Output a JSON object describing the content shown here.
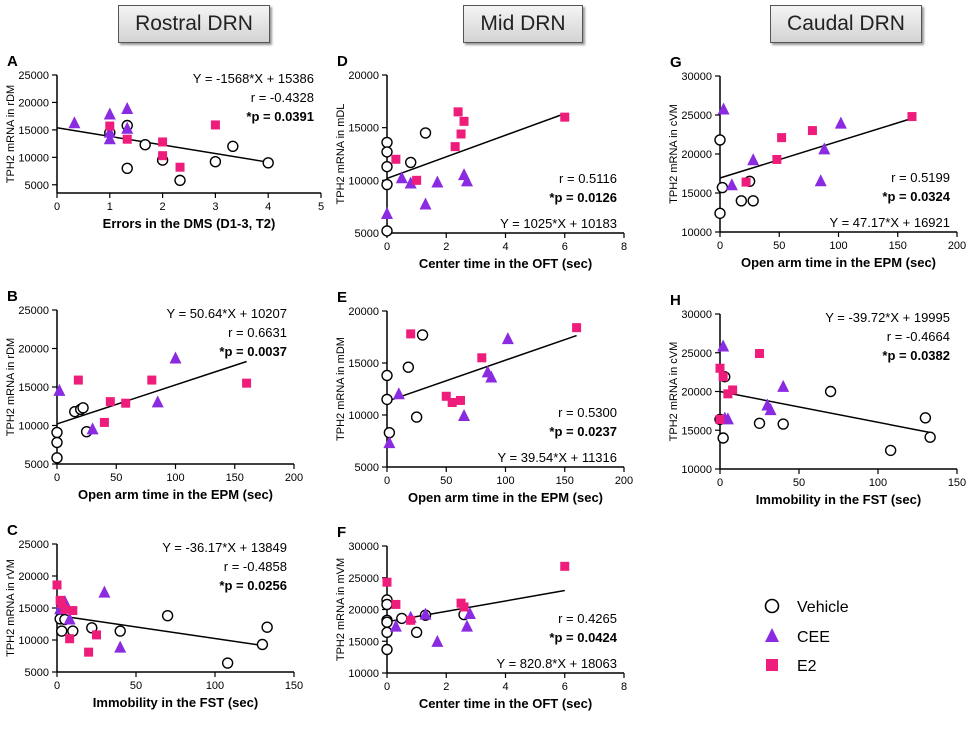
{
  "headers": [
    "Rostral DRN",
    "Mid DRN",
    "Caudal DRN"
  ],
  "legend": [
    {
      "label": "Vehicle",
      "marker": "circle",
      "color": "#ffffff"
    },
    {
      "label": "CEE",
      "marker": "triangle",
      "color": "#8a2be2"
    },
    {
      "label": "E2",
      "marker": "square",
      "color": "#ee1c7a"
    }
  ],
  "colors": {
    "cee": "#8a2be2",
    "e2": "#ee1c7a",
    "line": "#000000"
  },
  "chart_data": [
    {
      "id": "A",
      "type": "scatter",
      "ylabel": "TPH2 mRNA in rDM",
      "xlabel": "Errors in the DMS (D1-3, T2)",
      "xticks": [
        "0",
        "1",
        "2",
        "3",
        "4",
        "5"
      ],
      "yticks": [
        "5000",
        "10000",
        "15000",
        "20000",
        "25000"
      ],
      "xlim": [
        0,
        5
      ],
      "ylim": [
        3500,
        25000
      ],
      "eq": "Y = -1568*X + 15386",
      "r": "r = -0.4328",
      "p": "*p = 0.0391",
      "stats_pos": "top-right",
      "line": [
        [
          0,
          15386
        ],
        [
          4,
          9114
        ]
      ],
      "vehicle": [
        [
          1,
          14500
        ],
        [
          1.33,
          15800
        ],
        [
          1.67,
          12300
        ],
        [
          1.33,
          8000
        ],
        [
          2,
          9500
        ],
        [
          2.33,
          5800
        ],
        [
          3,
          9200
        ],
        [
          3.33,
          12000
        ],
        [
          4,
          9000
        ]
      ],
      "cee": [
        [
          0.33,
          16200
        ],
        [
          1,
          17800
        ],
        [
          1,
          14500
        ],
        [
          1,
          13300
        ],
        [
          1.33,
          18800
        ],
        [
          1.33,
          15200
        ]
      ],
      "e2": [
        [
          1,
          15700
        ],
        [
          1.33,
          13300
        ],
        [
          2,
          12800
        ],
        [
          2,
          10300
        ],
        [
          2.33,
          8200
        ],
        [
          3,
          15900
        ]
      ]
    },
    {
      "id": "B",
      "type": "scatter",
      "ylabel": "TPH2 mRNA in rDM",
      "xlabel": "Open arm time in the EPM (sec)",
      "xticks": [
        "0",
        "50",
        "100",
        "150",
        "200"
      ],
      "yticks": [
        "5000",
        "10000",
        "15000",
        "20000",
        "25000"
      ],
      "xlim": [
        0,
        200
      ],
      "ylim": [
        5000,
        25000
      ],
      "eq": "Y = 50.64*X + 10207",
      "r": "r = 0.6631",
      "p": "*p = 0.0037",
      "stats_pos": "top-right",
      "line": [
        [
          0,
          10207
        ],
        [
          160,
          18309
        ]
      ],
      "vehicle": [
        [
          0,
          5800
        ],
        [
          0,
          7800
        ],
        [
          0,
          9100
        ],
        [
          15,
          11800
        ],
        [
          20,
          12100
        ],
        [
          22,
          12300
        ],
        [
          25,
          9200
        ]
      ],
      "cee": [
        [
          2,
          14500
        ],
        [
          30,
          9500
        ],
        [
          85,
          13000
        ],
        [
          100,
          18700
        ]
      ],
      "e2": [
        [
          18,
          15900
        ],
        [
          40,
          10400
        ],
        [
          45,
          13100
        ],
        [
          58,
          12900
        ],
        [
          80,
          15900
        ],
        [
          160,
          15500
        ]
      ]
    },
    {
      "id": "C",
      "type": "scatter",
      "ylabel": "TPH2 mRNA in rVM",
      "xlabel": "Immobility in the FST (sec)",
      "xticks": [
        "0",
        "50",
        "100",
        "150"
      ],
      "yticks": [
        "5000",
        "10000",
        "15000",
        "20000",
        "25000"
      ],
      "xlim": [
        0,
        150
      ],
      "ylim": [
        5000,
        25000
      ],
      "eq": "Y = -36.17*X + 13849",
      "r": "r = -0.4858",
      "p": "*p = 0.0256",
      "stats_pos": "top-right",
      "line": [
        [
          0,
          13849
        ],
        [
          130,
          9147
        ]
      ],
      "vehicle": [
        [
          2,
          13300
        ],
        [
          3,
          11400
        ],
        [
          5,
          13200
        ],
        [
          10,
          11400
        ],
        [
          22,
          11900
        ],
        [
          40,
          11400
        ],
        [
          70,
          13800
        ],
        [
          108,
          6400
        ],
        [
          130,
          9300
        ],
        [
          133,
          12000
        ]
      ],
      "cee": [
        [
          2,
          14800
        ],
        [
          3,
          15700
        ],
        [
          5,
          15900
        ],
        [
          8,
          13200
        ],
        [
          30,
          17400
        ],
        [
          40,
          8800
        ]
      ],
      "e2": [
        [
          0,
          18600
        ],
        [
          2,
          16200
        ],
        [
          3,
          15700
        ],
        [
          5,
          14800
        ],
        [
          8,
          10200
        ],
        [
          10,
          14600
        ],
        [
          20,
          8100
        ],
        [
          25,
          10800
        ]
      ]
    },
    {
      "id": "D",
      "type": "scatter",
      "ylabel": "TPH2 mRNA in mDL",
      "xlabel": "Center time in the OFT (sec)",
      "xticks": [
        "0",
        "2",
        "4",
        "6",
        "8"
      ],
      "yticks": [
        "5000",
        "10000",
        "15000",
        "20000"
      ],
      "xlim": [
        0,
        8
      ],
      "ylim": [
        5000,
        20000
      ],
      "eq": "Y = 1025*X + 10183",
      "r": "r = 0.5116",
      "p": "*p = 0.0126",
      "stats_pos": "bottom-right",
      "line": [
        [
          0,
          10183
        ],
        [
          6,
          16333
        ]
      ],
      "vehicle": [
        [
          0,
          13600
        ],
        [
          0,
          12700
        ],
        [
          0,
          11300
        ],
        [
          0,
          9600
        ],
        [
          0,
          5200
        ],
        [
          0.8,
          11700
        ],
        [
          1.3,
          14500
        ]
      ],
      "cee": [
        [
          0,
          6800
        ],
        [
          0.5,
          10200
        ],
        [
          0.8,
          9700
        ],
        [
          1.3,
          7700
        ],
        [
          1.7,
          9800
        ],
        [
          2.6,
          10500
        ],
        [
          2.7,
          9900
        ]
      ],
      "e2": [
        [
          0.3,
          12000
        ],
        [
          1,
          10000
        ],
        [
          2.3,
          13200
        ],
        [
          2.4,
          16500
        ],
        [
          2.5,
          14400
        ],
        [
          2.6,
          15600
        ],
        [
          6,
          16000
        ]
      ]
    },
    {
      "id": "E",
      "type": "scatter",
      "ylabel": "TPH2 mRNA in mDM",
      "xlabel": "Open arm time in the EPM (sec)",
      "xticks": [
        "0",
        "50",
        "100",
        "150",
        "200"
      ],
      "yticks": [
        "5000",
        "10000",
        "15000",
        "20000"
      ],
      "xlim": [
        0,
        200
      ],
      "ylim": [
        5000,
        20000
      ],
      "eq": "Y = 39.54*X + 11316",
      "r": "r = 0.5300",
      "p": "*p = 0.0237",
      "stats_pos": "bottom-right",
      "line": [
        [
          0,
          11316
        ],
        [
          160,
          17642
        ]
      ],
      "vehicle": [
        [
          0,
          13800
        ],
        [
          0,
          11500
        ],
        [
          2,
          8300
        ],
        [
          18,
          14600
        ],
        [
          25,
          9800
        ],
        [
          30,
          17700
        ]
      ],
      "cee": [
        [
          2,
          7300
        ],
        [
          10,
          12000
        ],
        [
          65,
          9900
        ],
        [
          85,
          14100
        ],
        [
          88,
          13600
        ],
        [
          102,
          17300
        ]
      ],
      "e2": [
        [
          20,
          17800
        ],
        [
          50,
          11800
        ],
        [
          55,
          11200
        ],
        [
          62,
          11400
        ],
        [
          80,
          15500
        ],
        [
          160,
          18400
        ]
      ]
    },
    {
      "id": "F",
      "type": "scatter",
      "ylabel": "TPH2 mRNA in mVM",
      "xlabel": "Center time in the OFT (sec)",
      "xticks": [
        "0",
        "2",
        "4",
        "6",
        "8"
      ],
      "yticks": [
        "10000",
        "15000",
        "20000",
        "25000",
        "30000"
      ],
      "xlim": [
        0,
        8
      ],
      "ylim": [
        10000,
        30000
      ],
      "eq": "Y = 820.8*X + 18063",
      "r": "r = 0.4265",
      "p": "*p = 0.0424",
      "stats_pos": "bottom-right",
      "line": [
        [
          0,
          18063
        ],
        [
          6,
          22988
        ]
      ],
      "vehicle": [
        [
          0,
          21500
        ],
        [
          0,
          20800
        ],
        [
          0,
          18300
        ],
        [
          0,
          18000
        ],
        [
          0,
          16400
        ],
        [
          0,
          13700
        ],
        [
          0.5,
          18600
        ],
        [
          1,
          16400
        ],
        [
          1.3,
          19100
        ],
        [
          2.6,
          19200
        ]
      ],
      "cee": [
        [
          0.3,
          17300
        ],
        [
          0.8,
          18700
        ],
        [
          1.3,
          19200
        ],
        [
          1.7,
          14900
        ],
        [
          2.7,
          17300
        ],
        [
          2.8,
          19300
        ]
      ],
      "e2": [
        [
          0,
          24300
        ],
        [
          0.3,
          20800
        ],
        [
          0.8,
          18300
        ],
        [
          2.5,
          21000
        ],
        [
          2.6,
          20400
        ],
        [
          6,
          26800
        ]
      ]
    },
    {
      "id": "G",
      "type": "scatter",
      "ylabel": "TPH2 mRNA in cVM",
      "xlabel": "Open arm time in the EPM (sec)",
      "xticks": [
        "0",
        "50",
        "100",
        "150",
        "200"
      ],
      "yticks": [
        "10000",
        "15000",
        "20000",
        "25000",
        "30000"
      ],
      "xlim": [
        0,
        200
      ],
      "ylim": [
        10000,
        30000
      ],
      "eq": "Y = 47.17*X + 16921",
      "r": "r = 0.5199",
      "p": "*p = 0.0324",
      "stats_pos": "bottom-right",
      "line": [
        [
          0,
          16921
        ],
        [
          160,
          24468
        ]
      ],
      "vehicle": [
        [
          0,
          21800
        ],
        [
          0,
          12400
        ],
        [
          2,
          15700
        ],
        [
          18,
          14000
        ],
        [
          25,
          16500
        ],
        [
          28,
          14000
        ]
      ],
      "cee": [
        [
          3,
          25700
        ],
        [
          10,
          16000
        ],
        [
          28,
          19200
        ],
        [
          85,
          16500
        ],
        [
          88,
          20600
        ],
        [
          102,
          23900
        ]
      ],
      "e2": [
        [
          22,
          16400
        ],
        [
          48,
          19300
        ],
        [
          52,
          22100
        ],
        [
          78,
          23000
        ],
        [
          162,
          24800
        ]
      ]
    },
    {
      "id": "H",
      "type": "scatter",
      "ylabel": "TPH2 mRNA in cVM",
      "xlabel": "Immobility in the FST (sec)",
      "xticks": [
        "0",
        "50",
        "100",
        "150"
      ],
      "yticks": [
        "10000",
        "15000",
        "20000",
        "25000",
        "30000"
      ],
      "xlim": [
        0,
        150
      ],
      "ylim": [
        10000,
        30000
      ],
      "eq": "Y = -39.72*X + 19995",
      "r": "r = -0.4664",
      "p": "*p = 0.0382",
      "stats_pos": "top-right",
      "line": [
        [
          0,
          19995
        ],
        [
          133,
          14712
        ]
      ],
      "vehicle": [
        [
          0,
          16400
        ],
        [
          2,
          14000
        ],
        [
          3,
          21900
        ],
        [
          25,
          15900
        ],
        [
          40,
          15800
        ],
        [
          70,
          20000
        ],
        [
          108,
          12400
        ],
        [
          130,
          16600
        ],
        [
          133,
          14100
        ]
      ],
      "cee": [
        [
          2,
          25800
        ],
        [
          3,
          16500
        ],
        [
          5,
          16400
        ],
        [
          30,
          18200
        ],
        [
          32,
          17600
        ],
        [
          40,
          20600
        ]
      ],
      "e2": [
        [
          0,
          23000
        ],
        [
          0,
          16400
        ],
        [
          2,
          21900
        ],
        [
          5,
          19700
        ],
        [
          8,
          20200
        ],
        [
          25,
          24900
        ]
      ]
    }
  ]
}
